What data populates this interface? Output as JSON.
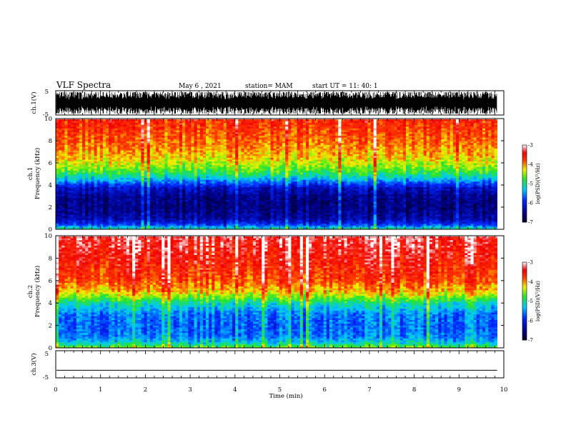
{
  "header": {
    "title": "VLF Spectra",
    "date": "May 6 , 2021",
    "station": "station= MAM",
    "start": "start UT = 11: 40: 1"
  },
  "chart_data": [
    {
      "type": "line",
      "ylabel": "ch.1(V)",
      "ylim": [
        -5,
        5
      ],
      "y_ticks": [
        "5",
        "-5"
      ],
      "xlim": [
        0,
        10
      ]
    },
    {
      "type": "heatmap",
      "title": "ch.1",
      "ylabel": "Frequency (kHz)",
      "xlim": [
        0,
        9.85
      ],
      "ylim": [
        0,
        10
      ],
      "y_ticks": [
        "0",
        "2",
        "4",
        "6",
        "8",
        "10"
      ],
      "colorbar": {
        "label": "log(PSD)(V²/Hz)",
        "ticks": [
          "-3",
          "-4",
          "-5",
          "-6",
          "-7"
        ],
        "range": [
          -7,
          -3
        ]
      },
      "profile": {
        "freq_khz": [
          0,
          0.5,
          1,
          2,
          3,
          3.8,
          4.3,
          4.8,
          5.5,
          6.5,
          8,
          10
        ],
        "log_psd": [
          -5.0,
          -6.0,
          -6.4,
          -6.6,
          -6.5,
          -6.2,
          -5.6,
          -5.1,
          -4.6,
          -4.2,
          -3.9,
          -3.6
        ]
      }
    },
    {
      "type": "heatmap",
      "title": "ch.2",
      "ylabel": "Frequency (kHz)",
      "xlim": [
        0,
        9.85
      ],
      "ylim": [
        0,
        10
      ],
      "y_ticks": [
        "0",
        "2",
        "4",
        "6",
        "8",
        "10"
      ],
      "colorbar": {
        "label": "log(PSD)(V²/Hz)",
        "ticks": [
          "-3",
          "-4",
          "-5",
          "-6",
          "-7"
        ],
        "range": [
          -7,
          -3
        ]
      },
      "profile": {
        "freq_khz": [
          0,
          0.5,
          1,
          2,
          3,
          4,
          4.5,
          5,
          6,
          8,
          10
        ],
        "log_psd": [
          -4.6,
          -5.3,
          -5.6,
          -5.7,
          -5.6,
          -5.1,
          -4.6,
          -4.2,
          -3.8,
          -3.5,
          -3.3
        ]
      }
    },
    {
      "type": "line",
      "ylabel": "ch.3(V)",
      "ylim": [
        -5,
        5
      ],
      "y_ticks": [
        "5",
        "-5"
      ],
      "xlim": [
        0,
        10
      ],
      "y_values": [
        -2.2
      ]
    }
  ],
  "xaxis": {
    "label": "Time (min)",
    "ticks": [
      "0",
      "1",
      "2",
      "3",
      "4",
      "5",
      "6",
      "7",
      "8",
      "9",
      "10"
    ]
  }
}
